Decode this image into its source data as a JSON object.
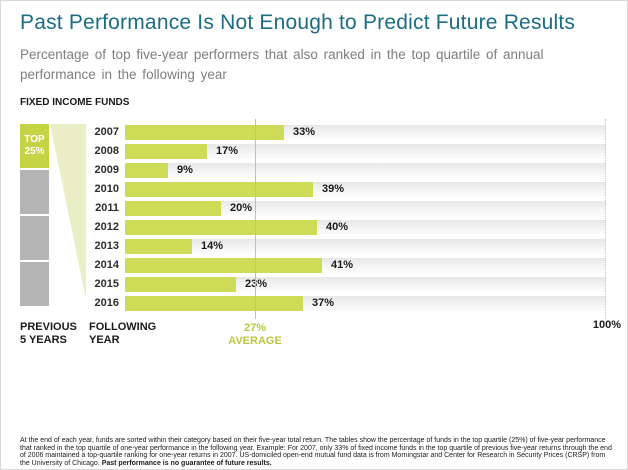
{
  "header": {
    "title": "Past Performance Is Not Enough to Predict Future Results",
    "subtitle": "Percentage of top five-year performers that also ranked in the top quartile of annual performance in the following year"
  },
  "section_label": "FIXED INCOME FUNDS",
  "quartile_diagram": {
    "top_box_label": "TOP\n25%",
    "previous_axis_label": "PREVIOUS\n5 YEARS",
    "following_axis_label": "FOLLOWING\nYEAR"
  },
  "chart_data": {
    "type": "bar",
    "orientation": "horizontal",
    "title": "FIXED INCOME FUNDS",
    "categories": [
      "2007",
      "2008",
      "2009",
      "2010",
      "2011",
      "2012",
      "2013",
      "2014",
      "2015",
      "2016"
    ],
    "values": [
      33,
      17,
      9,
      39,
      20,
      40,
      14,
      41,
      23,
      37
    ],
    "value_labels": [
      "33%",
      "17%",
      "9%",
      "39%",
      "20%",
      "40%",
      "14%",
      "41%",
      "23%",
      "37%"
    ],
    "value_suffix": "%",
    "xlim": [
      0,
      100
    ],
    "axis_max_label": "100%",
    "average": {
      "value": 27,
      "label": "27%\nAVERAGE"
    },
    "grid": false,
    "legend": false,
    "colors": {
      "bar": "#cedb56",
      "track": "#e7e7e7",
      "top_quartile_box": "#c5d445",
      "other_quartile_box": "#b4b4b4",
      "funnel": "#eaeec6",
      "average_line": "#c3d24b",
      "title_accent": "#1b6c85"
    }
  },
  "footnote": {
    "text": "At the end of each year, funds are sorted within their category based on their five-year total return. The tables show the percentage of funds in the top quartile (25%) of five-year performance that ranked in the top quartile of one-year performance in the following year. Example: For 2007, only 33% of fixed income funds in the top quartile of previous five-year returns through the end of 2006 maintained a top-quartile ranking for one-year returns in 2007. US-domiciled open-end mutual fund data is from Morningstar and Center for Research in Security Prices (CRSP) from the University of Chicago. ",
    "bold_text": "Past performance is no guarantee of future results."
  }
}
